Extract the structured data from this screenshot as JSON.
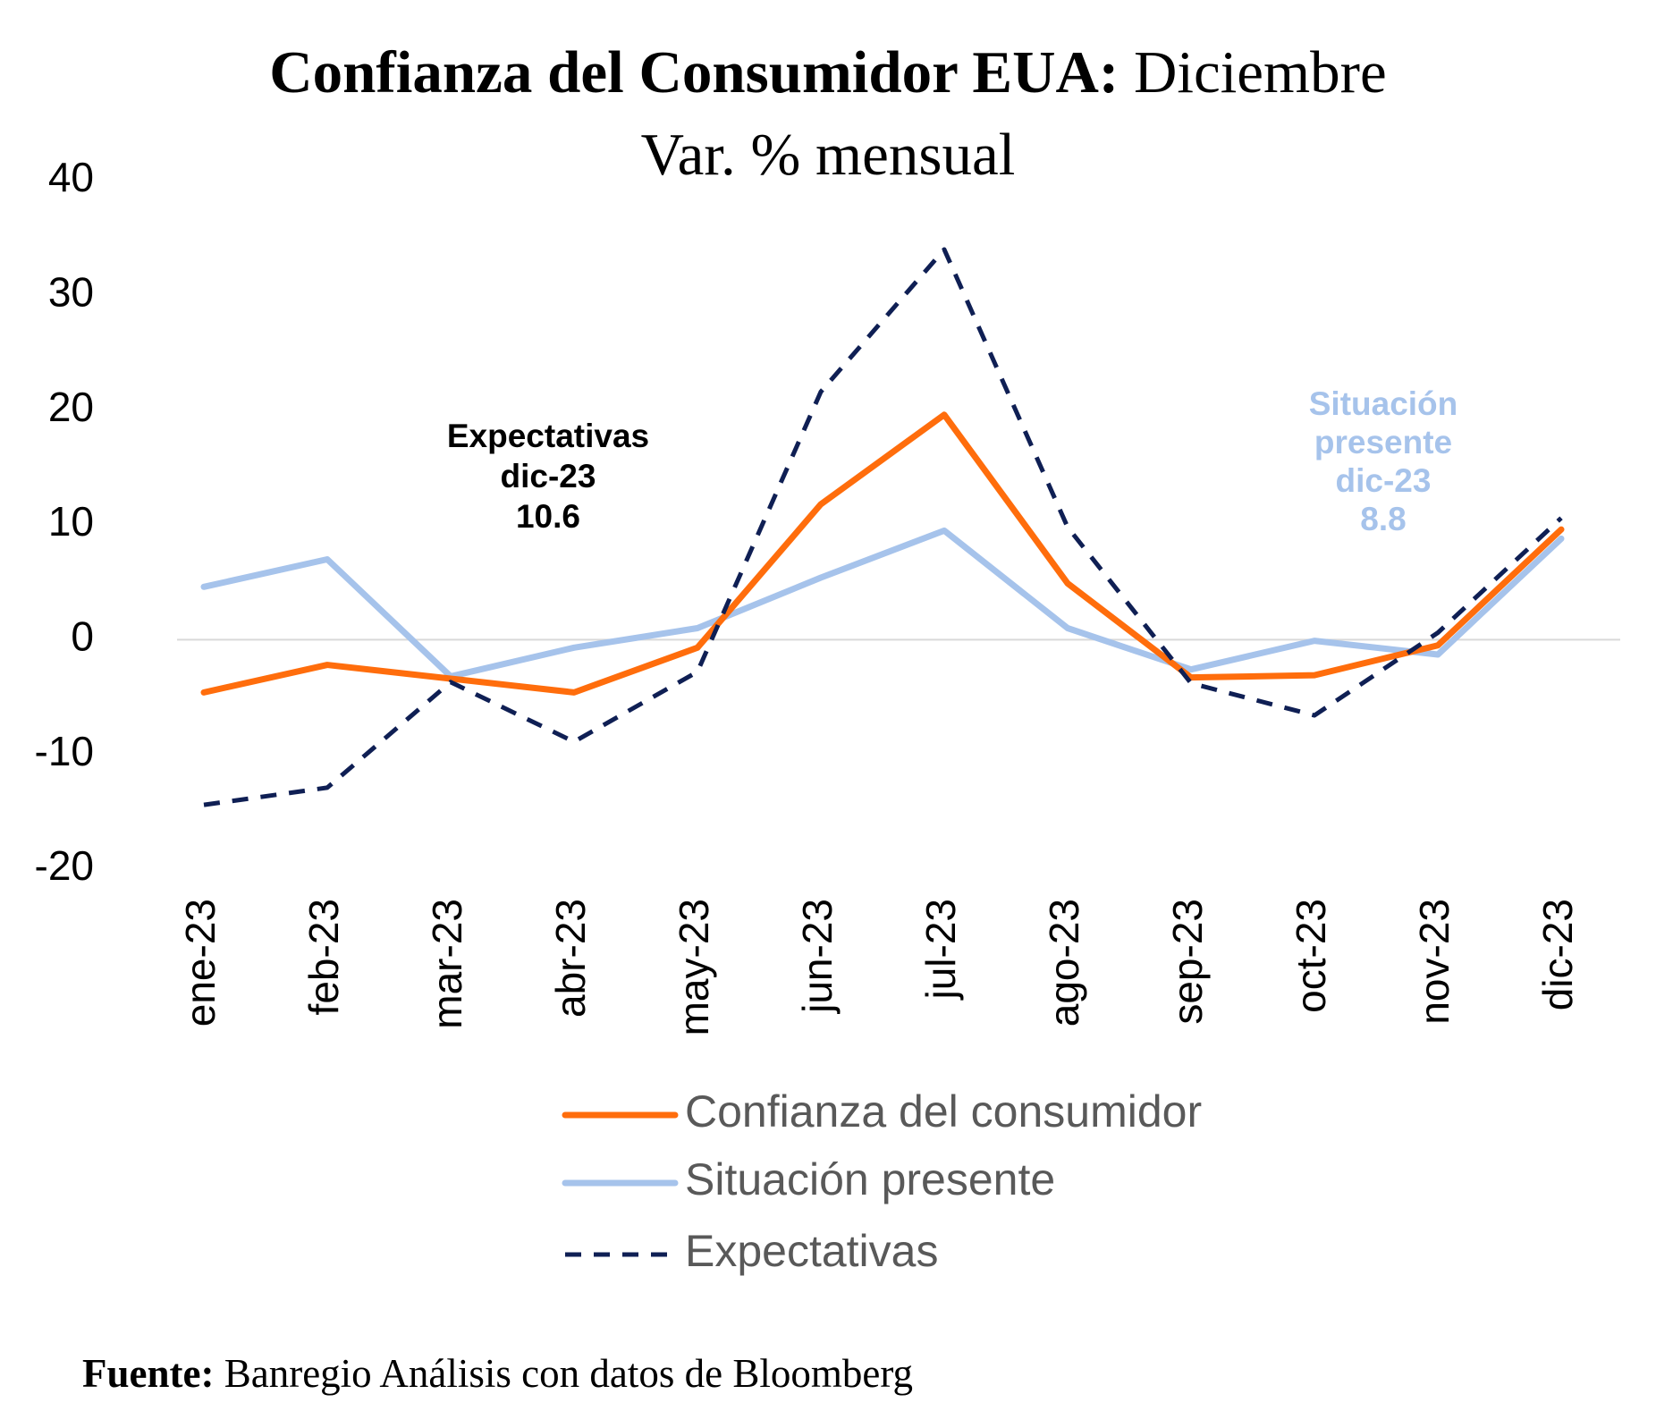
{
  "header": {
    "title_bold": "Confianza del Consumidor EUA:",
    "title_rest": " Diciembre",
    "subtitle": "Var. % mensual"
  },
  "source": {
    "label": "Fuente:",
    "text": " Banregio Análisis con datos de Bloomberg"
  },
  "annotations": {
    "expectativas": [
      "Expectativas",
      "dic-23",
      "10.6"
    ],
    "situacion": [
      "Situación",
      "presente",
      "dic-23",
      "8.8"
    ]
  },
  "colors": {
    "confianza": "#ff6d0c",
    "situacion": "#a6c3eb",
    "expectativas": "#0f1f54",
    "zero_line": "#d9d9d9",
    "tick_text": "#000000",
    "legend_text": "#595959"
  },
  "chart_data": {
    "type": "line",
    "categories": [
      "ene-23",
      "feb-23",
      "mar-23",
      "abr-23",
      "may-23",
      "jun-23",
      "jul-23",
      "ago-23",
      "sep-23",
      "oct-23",
      "nov-23",
      "dic-23"
    ],
    "ylim": [
      -20,
      40
    ],
    "yticks": [
      -20,
      -10,
      0,
      10,
      20,
      30,
      40
    ],
    "grid": false,
    "legend_position": "bottom",
    "series": [
      {
        "name": "Confianza del consumidor",
        "style": "solid",
        "values": [
          -4.6,
          -2.2,
          -3.4,
          -4.6,
          -0.7,
          11.8,
          19.6,
          4.9,
          -3.3,
          -3.1,
          -0.5,
          9.6
        ]
      },
      {
        "name": "Situación presente",
        "style": "solid",
        "values": [
          4.6,
          7.0,
          -3.2,
          -0.7,
          1.0,
          5.4,
          9.5,
          1.0,
          -2.6,
          -0.1,
          -1.3,
          8.8
        ]
      },
      {
        "name": "Expectativas",
        "style": "dashed",
        "values": [
          -14.4,
          -12.9,
          -3.7,
          -8.9,
          -2.8,
          21.6,
          34.0,
          9.8,
          -3.8,
          -6.6,
          0.6,
          10.6
        ]
      }
    ]
  }
}
